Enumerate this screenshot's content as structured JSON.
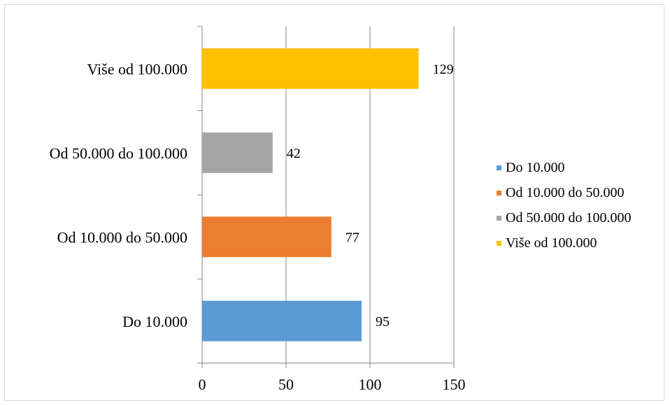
{
  "chart_data": {
    "type": "bar",
    "orientation": "horizontal",
    "categories": [
      "Do 10.000",
      "Od 10.000 do 50.000",
      "Od 50.000 do 100.000",
      "Više od 100.000"
    ],
    "values": [
      95,
      77,
      42,
      129
    ],
    "colors": [
      "#5b9bd5",
      "#ed7d31",
      "#a5a5a5",
      "#ffc000"
    ],
    "xlim": [
      0,
      150
    ],
    "xticks": [
      "0",
      "50",
      "100",
      "150"
    ],
    "grid": true,
    "legend_position": "right",
    "data_labels": [
      "95",
      "77",
      "42",
      "129"
    ],
    "title": "",
    "xlabel": "",
    "ylabel": ""
  },
  "legend": {
    "items": [
      {
        "label": "Do 10.000",
        "color": "#5b9bd5"
      },
      {
        "label": "Od 10.000 do 50.000",
        "color": "#ed7d31"
      },
      {
        "label": "Od 50.000 do 100.000",
        "color": "#a5a5a5"
      },
      {
        "label": "Više od 100.000",
        "color": "#ffc000"
      }
    ]
  }
}
